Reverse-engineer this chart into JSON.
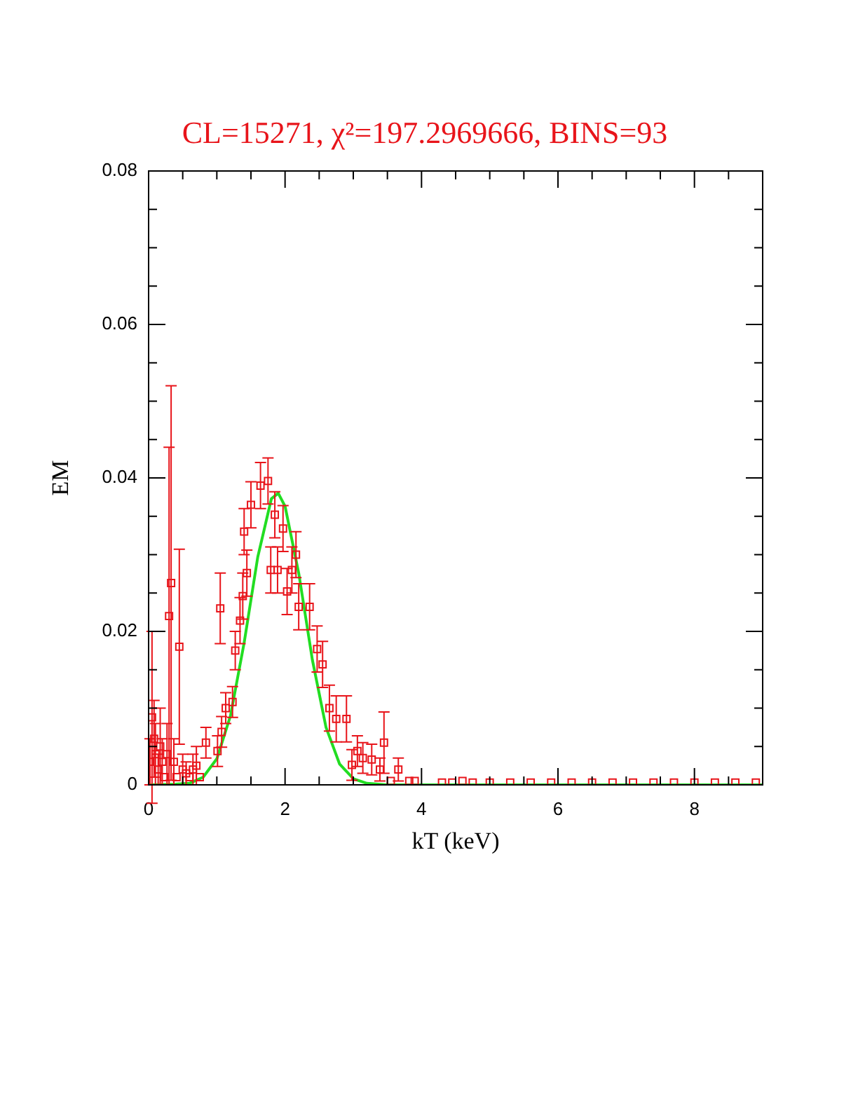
{
  "chart_data": {
    "type": "scatter",
    "title": "CL=15271, χ²=197.2969666, BINS=93",
    "xlabel": "kT (keV)",
    "ylabel": "EM",
    "xlim": [
      0,
      9
    ],
    "ylim": [
      0,
      0.08
    ],
    "xticks": [
      0,
      {
        "value": 0.5,
        "label": null
      },
      {
        "value": 1,
        "label": null
      },
      {
        "value": 1.5,
        "label": null
      },
      2,
      {
        "value": 2.5,
        "label": null
      },
      {
        "value": 3,
        "label": null
      },
      {
        "value": 3.5,
        "label": null
      },
      4,
      {
        "value": 4.5,
        "label": null
      },
      {
        "value": 5,
        "label": null
      },
      {
        "value": 5.5,
        "label": null
      },
      6,
      {
        "value": 6.5,
        "label": null
      },
      {
        "value": 7,
        "label": null
      },
      {
        "value": 7.5,
        "label": null
      },
      8,
      {
        "value": 8.5,
        "label": null
      },
      {
        "value": 9,
        "label": null
      }
    ],
    "yticks": [
      0,
      {
        "value": 0.005,
        "label": null
      },
      {
        "value": 0.01,
        "label": null
      },
      {
        "value": 0.015,
        "label": null
      },
      0.02,
      {
        "value": 0.025,
        "label": null
      },
      {
        "value": 0.03,
        "label": null
      },
      {
        "value": 0.035,
        "label": null
      },
      0.04,
      {
        "value": 0.045,
        "label": null
      },
      {
        "value": 0.05,
        "label": null
      },
      {
        "value": 0.055,
        "label": null
      },
      0.06,
      {
        "value": 0.065,
        "label": null
      },
      {
        "value": 0.07,
        "label": null
      },
      {
        "value": 0.075,
        "label": null
      },
      0.08
    ],
    "grid": false,
    "legend": false,
    "series": [
      {
        "color": "#e8141a",
        "marker": "square",
        "x": [
          0.02,
          0.05,
          0.08,
          0.1,
          0.14,
          0.17,
          0.2,
          0.23,
          0.27,
          0.3,
          0.33,
          0.37,
          0.41,
          0.45,
          0.5,
          0.55,
          0.6,
          0.65,
          0.7,
          0.75,
          0.84,
          1.01,
          1.05,
          1.07,
          1.13,
          1.23,
          1.27,
          1.34,
          1.38,
          1.4,
          1.44,
          1.5,
          1.64,
          1.75,
          1.79,
          1.85,
          1.89,
          1.97,
          2.03,
          2.1,
          2.16,
          2.2,
          2.36,
          2.47,
          2.55,
          2.65,
          2.75,
          2.9,
          2.98,
          3.06,
          3.14,
          3.27,
          3.39,
          3.45,
          3.55,
          3.66,
          3.82,
          3.9,
          4.3,
          4.45,
          4.6,
          4.75,
          5.0,
          5.3,
          5.6,
          5.9,
          6.2,
          6.5,
          6.8,
          7.1,
          7.4,
          7.7,
          8.0,
          8.3,
          8.6,
          8.9
        ],
        "values": [
          0.003,
          0.0088,
          0.006,
          0.004,
          0.002,
          0.005,
          0.003,
          0.001,
          0.004,
          0.022,
          0.0263,
          0.003,
          0.001,
          0.018,
          0.002,
          0.0015,
          0.001,
          0.002,
          0.0025,
          0.001,
          0.0055,
          0.0044,
          0.023,
          0.0069,
          0.01,
          0.0108,
          0.0175,
          0.0214,
          0.0246,
          0.033,
          0.0276,
          0.0365,
          0.039,
          0.0396,
          0.028,
          0.0352,
          0.028,
          0.0334,
          0.0252,
          0.028,
          0.03,
          0.0232,
          0.0232,
          0.0177,
          0.0157,
          0.01,
          0.0086,
          0.0086,
          0.0026,
          0.0044,
          0.0035,
          0.0033,
          0.002,
          0.0055,
          0.0005,
          0.002,
          0.0005,
          0.0005,
          0.0003,
          0.0003,
          0.0005,
          0.0003,
          0.0003,
          0.0003,
          0.0003,
          0.0003,
          0.0003,
          0.0003,
          0.0003,
          0.0003,
          0.0003,
          0.0003,
          0.0003,
          0.0003,
          0.0003,
          0.0003
        ],
        "errors": [
          0.003,
          0.0112,
          0.005,
          0.004,
          0.002,
          0.005,
          0.003,
          null,
          0.004,
          0.022,
          0.0257,
          0.003,
          null,
          0.0127,
          0.002,
          0.0015,
          null,
          0.002,
          0.0025,
          null,
          0.002,
          0.002,
          0.0046,
          0.002,
          0.002,
          0.002,
          0.0025,
          0.003,
          0.003,
          0.003,
          0.003,
          0.003,
          0.003,
          0.003,
          0.003,
          0.003,
          0.003,
          0.003,
          0.003,
          0.003,
          0.003,
          0.003,
          0.003,
          0.003,
          0.003,
          0.003,
          0.003,
          0.003,
          0.002,
          0.002,
          0.002,
          0.002,
          0.0015,
          0.004,
          null,
          0.0015,
          null,
          null,
          null,
          null,
          null,
          null,
          null,
          null,
          null,
          null,
          null,
          null,
          null,
          null,
          null,
          null,
          null,
          null,
          null,
          null
        ]
      },
      {
        "type": "line",
        "color": "#22dd22",
        "marker": "none",
        "line_style": "solid",
        "x": [
          0,
          0.4,
          0.6,
          0.8,
          1.0,
          1.2,
          1.4,
          1.6,
          1.8,
          1.9,
          2.0,
          2.2,
          2.4,
          2.6,
          2.8,
          3.0,
          3.2,
          3.5,
          4,
          9
        ],
        "values": [
          0,
          0.0001,
          0.0002,
          0.001,
          0.0034,
          0.009,
          0.0185,
          0.0297,
          0.0373,
          0.038,
          0.0363,
          0.0276,
          0.0163,
          0.0075,
          0.0027,
          0.0008,
          0.0002,
          0,
          0,
          0
        ]
      }
    ]
  }
}
